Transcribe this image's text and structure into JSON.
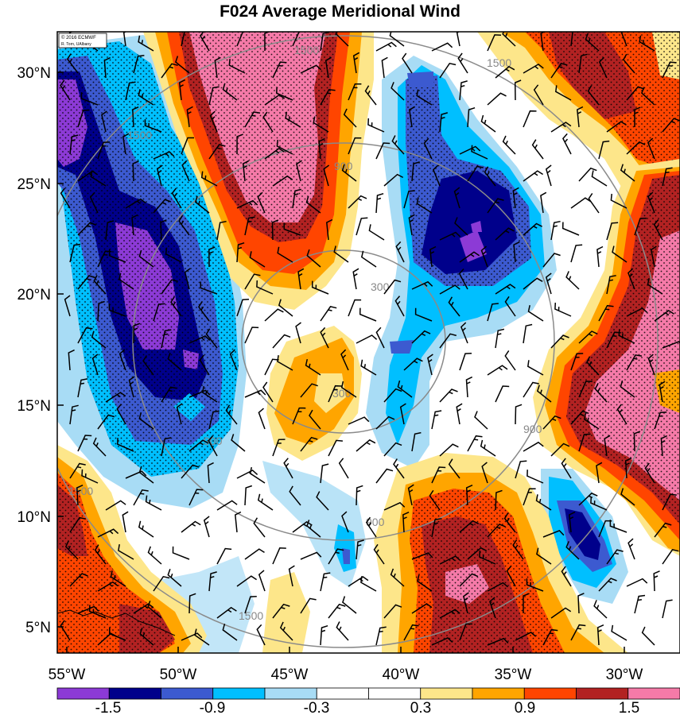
{
  "title": "F024 Average Meridional Wind",
  "credit": {
    "line1": "© 2016 ECMWF",
    "line2": "R. Torn, UAlbany"
  },
  "lat_labels": [
    "30°N",
    "25°N",
    "20°N",
    "15°N",
    "10°N",
    "5°N"
  ],
  "lon_labels": [
    "55°W",
    "50°W",
    "45°W",
    "40°W",
    "35°W",
    "30°W"
  ],
  "colorbar": {
    "colors": [
      "#8c3ad6",
      "#00008b",
      "#3c5ad0",
      "#00bfff",
      "#a8dcf5",
      "#ffffff",
      "#ffffff",
      "#fde68a",
      "#ffa500",
      "#ff4500",
      "#b22222",
      "#f57aa8"
    ],
    "labels": [
      "-1.5",
      "-0.9",
      "-0.3",
      "0.3",
      "0.9",
      "1.5"
    ]
  },
  "contour_labels": [
    "1500",
    "1500",
    "1500",
    "1500",
    "1500",
    "900",
    "900",
    "900",
    "900",
    "300",
    "300"
  ]
}
